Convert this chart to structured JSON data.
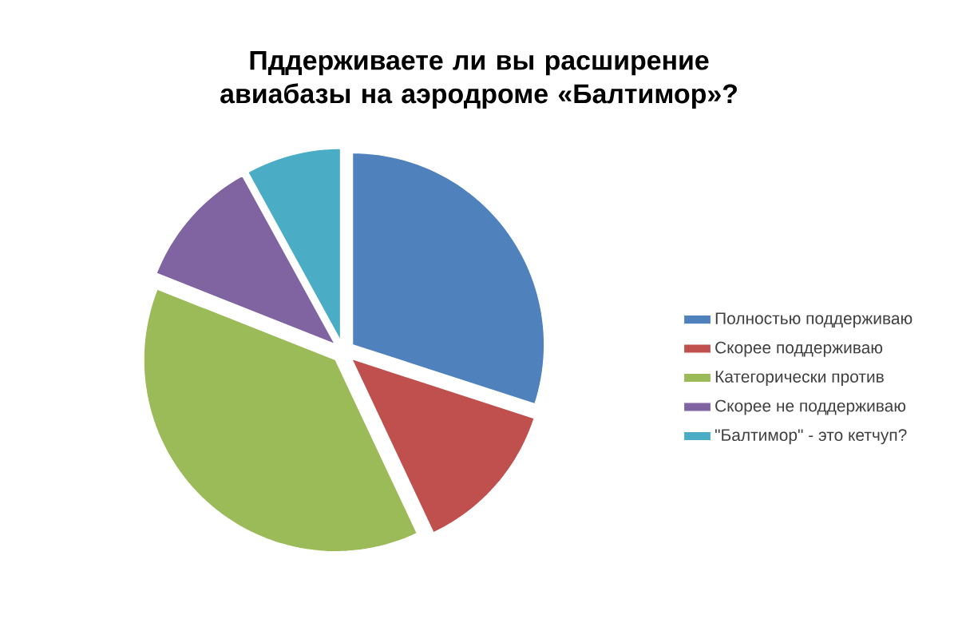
{
  "chart_data": {
    "type": "pie",
    "title": "Пддерживаете ли вы расширение авиабазы на аэродроме «Балтимор»?",
    "categories": [
      "Полностью поддерживаю",
      "Скорее поддерживаю",
      "Категорически против",
      "Скорее не поддерживаю",
      "\"Балтимор\" - это кетчуп?"
    ],
    "values": [
      30,
      13,
      38,
      11,
      8
    ],
    "colors": [
      "#4f81bd",
      "#c0504d",
      "#9bbb59",
      "#8064a2",
      "#4bacc6"
    ],
    "legend": "right"
  }
}
